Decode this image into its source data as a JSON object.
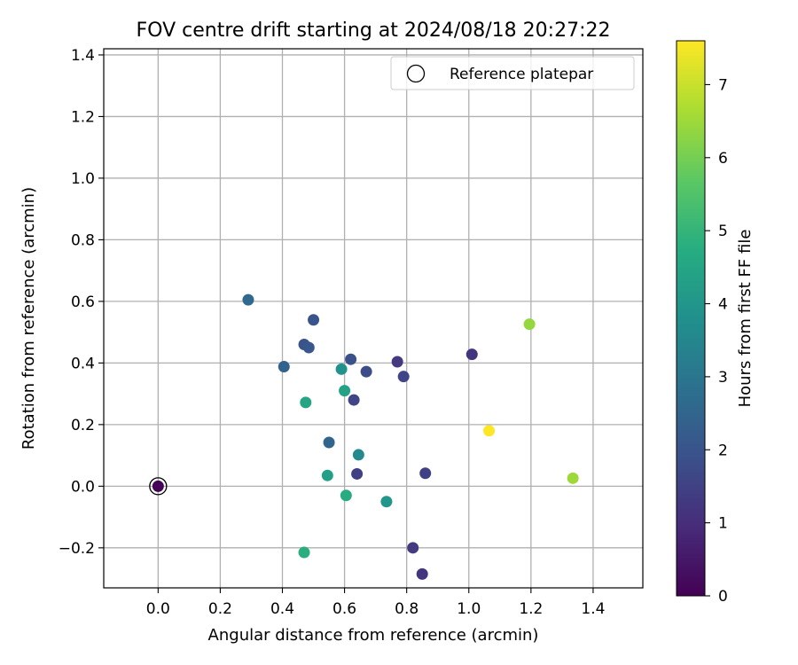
{
  "chart_data": {
    "type": "scatter",
    "title": "FOV centre drift starting at 2024/08/18 20:27:22",
    "xlabel": "Angular distance from reference (arcmin)",
    "ylabel": "Rotation from reference (arcmin)",
    "xlim": [
      -0.175,
      1.56
    ],
    "ylim": [
      -0.33,
      1.42
    ],
    "xticks": [
      0.0,
      0.2,
      0.4,
      0.6,
      0.8,
      1.0,
      1.2,
      1.4
    ],
    "xtick_labels": [
      "0.0",
      "0.2",
      "0.4",
      "0.6",
      "0.8",
      "1.0",
      "1.2",
      "1.4"
    ],
    "yticks": [
      -0.2,
      0.0,
      0.2,
      0.4,
      0.6,
      0.8,
      1.0,
      1.2,
      1.4
    ],
    "ytick_labels": [
      "−0.2",
      "0.0",
      "0.2",
      "0.4",
      "0.6",
      "0.8",
      "1.0",
      "1.2",
      "1.4"
    ],
    "grid": true,
    "legend": {
      "placement": "top-right",
      "entries": [
        "Reference platepar"
      ]
    },
    "colorbar": {
      "label": "Hours from first FF file",
      "colormap": "viridis",
      "range": [
        0,
        7.6
      ],
      "ticks": [
        0,
        1,
        2,
        3,
        4,
        5,
        6,
        7
      ],
      "tick_labels": [
        "0",
        "1",
        "2",
        "3",
        "4",
        "5",
        "6",
        "7"
      ]
    },
    "reference_point": {
      "x": 0.0,
      "y": 0.0
    },
    "points": [
      {
        "x": 0.0,
        "y": 0.0,
        "hours": 0.05
      },
      {
        "x": 0.85,
        "y": -0.285,
        "hours": 1.2
      },
      {
        "x": 0.82,
        "y": -0.2,
        "hours": 1.3
      },
      {
        "x": 0.64,
        "y": 0.04,
        "hours": 1.5
      },
      {
        "x": 0.86,
        "y": 0.042,
        "hours": 1.5
      },
      {
        "x": 1.01,
        "y": 0.428,
        "hours": 1.2
      },
      {
        "x": 0.77,
        "y": 0.404,
        "hours": 1.3
      },
      {
        "x": 0.79,
        "y": 0.356,
        "hours": 1.6
      },
      {
        "x": 0.63,
        "y": 0.28,
        "hours": 1.6
      },
      {
        "x": 0.67,
        "y": 0.372,
        "hours": 1.8
      },
      {
        "x": 0.62,
        "y": 0.412,
        "hours": 1.9
      },
      {
        "x": 0.5,
        "y": 0.54,
        "hours": 2.0
      },
      {
        "x": 0.47,
        "y": 0.46,
        "hours": 2.0
      },
      {
        "x": 0.485,
        "y": 0.45,
        "hours": 2.1
      },
      {
        "x": 0.405,
        "y": 0.388,
        "hours": 2.4
      },
      {
        "x": 0.29,
        "y": 0.605,
        "hours": 2.6
      },
      {
        "x": 0.55,
        "y": 0.142,
        "hours": 2.5
      },
      {
        "x": 0.645,
        "y": 0.102,
        "hours": 3.6
      },
      {
        "x": 0.59,
        "y": 0.38,
        "hours": 3.9
      },
      {
        "x": 0.735,
        "y": -0.05,
        "hours": 4.0
      },
      {
        "x": 0.545,
        "y": 0.035,
        "hours": 4.3
      },
      {
        "x": 0.6,
        "y": 0.31,
        "hours": 4.4
      },
      {
        "x": 0.475,
        "y": 0.272,
        "hours": 4.5
      },
      {
        "x": 0.605,
        "y": -0.03,
        "hours": 4.7
      },
      {
        "x": 0.47,
        "y": -0.215,
        "hours": 4.8
      },
      {
        "x": 1.195,
        "y": 0.526,
        "hours": 6.4
      },
      {
        "x": 1.335,
        "y": 0.026,
        "hours": 6.5
      },
      {
        "x": 1.065,
        "y": 0.18,
        "hours": 7.6
      }
    ]
  }
}
